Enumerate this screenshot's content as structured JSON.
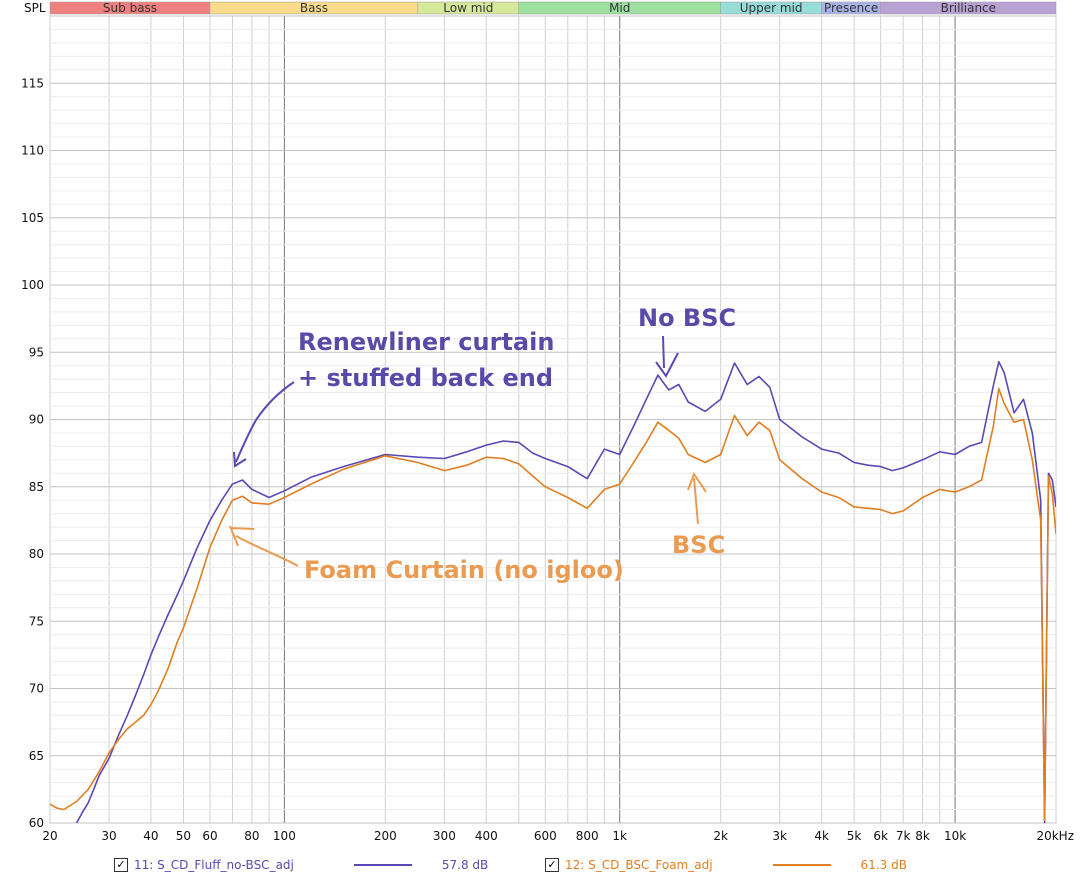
{
  "chart_data": {
    "type": "line",
    "ylabel": "SPL",
    "xscale": "log",
    "xlim": [
      20,
      20000
    ],
    "ylim": [
      60,
      120
    ],
    "grid": true,
    "x_ticks": [
      {
        "v": 20,
        "t": "20"
      },
      {
        "v": 30,
        "t": "30"
      },
      {
        "v": 40,
        "t": "40"
      },
      {
        "v": 50,
        "t": "50"
      },
      {
        "v": 60,
        "t": "60"
      },
      {
        "v": 80,
        "t": "80"
      },
      {
        "v": 100,
        "t": "100"
      },
      {
        "v": 200,
        "t": "200"
      },
      {
        "v": 300,
        "t": "300"
      },
      {
        "v": 400,
        "t": "400"
      },
      {
        "v": 600,
        "t": "600"
      },
      {
        "v": 800,
        "t": "800"
      },
      {
        "v": 1000,
        "t": "1k"
      },
      {
        "v": 2000,
        "t": "2k"
      },
      {
        "v": 3000,
        "t": "3k"
      },
      {
        "v": 4000,
        "t": "4k"
      },
      {
        "v": 5000,
        "t": "5k"
      },
      {
        "v": 6000,
        "t": "6k"
      },
      {
        "v": 7000,
        "t": "7k"
      },
      {
        "v": 8000,
        "t": "8k"
      },
      {
        "v": 10000,
        "t": "10k"
      },
      {
        "v": 20000,
        "t": "20kHz"
      }
    ],
    "y_ticks": [
      60,
      65,
      70,
      75,
      80,
      85,
      90,
      95,
      100,
      105,
      110,
      115
    ],
    "bands": [
      {
        "name": "Sub bass",
        "from": 20,
        "to": 60,
        "color": "#f08080"
      },
      {
        "name": "Bass",
        "from": 60,
        "to": 250,
        "color": "#f8dc8a"
      },
      {
        "name": "Low mid",
        "from": 250,
        "to": 500,
        "color": "#d6e89a"
      },
      {
        "name": "Mid",
        "from": 500,
        "to": 2000,
        "color": "#9de0a0"
      },
      {
        "name": "Upper mid",
        "from": 2000,
        "to": 4000,
        "color": "#96dcd8"
      },
      {
        "name": "Presence",
        "from": 4000,
        "to": 6000,
        "color": "#a8b4e8"
      },
      {
        "name": "Brilliance",
        "from": 6000,
        "to": 20000,
        "color": "#b8a2d4"
      }
    ],
    "series": [
      {
        "name": "11: S_CD_Fluff_no-BSC_adj",
        "color": "#5a48b4",
        "value_label": "57.8 dB",
        "points": [
          [
            24,
            60
          ],
          [
            25,
            60.8
          ],
          [
            26,
            61.5
          ],
          [
            27,
            62.5
          ],
          [
            28,
            63.5
          ],
          [
            30,
            64.8
          ],
          [
            32,
            66.5
          ],
          [
            34,
            68
          ],
          [
            36,
            69.5
          ],
          [
            38,
            71
          ],
          [
            40,
            72.5
          ],
          [
            42,
            73.8
          ],
          [
            45,
            75.5
          ],
          [
            48,
            77
          ],
          [
            50,
            78
          ],
          [
            55,
            80.5
          ],
          [
            60,
            82.5
          ],
          [
            65,
            84
          ],
          [
            70,
            85.2
          ],
          [
            75,
            85.5
          ],
          [
            80,
            84.8
          ],
          [
            90,
            84.2
          ],
          [
            100,
            84.7
          ],
          [
            120,
            85.7
          ],
          [
            150,
            86.5
          ],
          [
            200,
            87.4
          ],
          [
            250,
            87.2
          ],
          [
            300,
            87.1
          ],
          [
            350,
            87.6
          ],
          [
            400,
            88.1
          ],
          [
            450,
            88.4
          ],
          [
            500,
            88.3
          ],
          [
            550,
            87.5
          ],
          [
            600,
            87.1
          ],
          [
            700,
            86.5
          ],
          [
            800,
            85.6
          ],
          [
            900,
            87.8
          ],
          [
            1000,
            87.4
          ],
          [
            1100,
            89.5
          ],
          [
            1200,
            91.5
          ],
          [
            1300,
            93.3
          ],
          [
            1400,
            92.2
          ],
          [
            1500,
            92.6
          ],
          [
            1600,
            91.3
          ],
          [
            1800,
            90.6
          ],
          [
            2000,
            91.5
          ],
          [
            2200,
            94.2
          ],
          [
            2400,
            92.6
          ],
          [
            2600,
            93.2
          ],
          [
            2800,
            92.4
          ],
          [
            3000,
            90
          ],
          [
            3500,
            88.7
          ],
          [
            4000,
            87.8
          ],
          [
            4500,
            87.5
          ],
          [
            5000,
            86.8
          ],
          [
            5500,
            86.6
          ],
          [
            6000,
            86.5
          ],
          [
            6500,
            86.2
          ],
          [
            7000,
            86.4
          ],
          [
            8000,
            87
          ],
          [
            9000,
            87.6
          ],
          [
            10000,
            87.4
          ],
          [
            11000,
            88
          ],
          [
            12000,
            88.3
          ],
          [
            13000,
            92.5
          ],
          [
            13500,
            94.3
          ],
          [
            14000,
            93.5
          ],
          [
            15000,
            90.5
          ],
          [
            16000,
            91.5
          ],
          [
            17000,
            89
          ],
          [
            18000,
            84
          ],
          [
            18500,
            60
          ],
          [
            19000,
            86
          ],
          [
            19500,
            85.5
          ],
          [
            20000,
            83.5
          ]
        ]
      },
      {
        "name": "12: S_CD_BSC_Foam_adj",
        "color": "#e07e22",
        "value_label": "61.3 dB",
        "points": [
          [
            20,
            61.4
          ],
          [
            21,
            61.1
          ],
          [
            22,
            61
          ],
          [
            24,
            61.6
          ],
          [
            26,
            62.5
          ],
          [
            28,
            63.8
          ],
          [
            30,
            65.2
          ],
          [
            32,
            66.2
          ],
          [
            34,
            67
          ],
          [
            36,
            67.5
          ],
          [
            38,
            68
          ],
          [
            40,
            68.8
          ],
          [
            42,
            69.8
          ],
          [
            45,
            71.5
          ],
          [
            48,
            73.5
          ],
          [
            50,
            74.5
          ],
          [
            55,
            77.5
          ],
          [
            60,
            80.5
          ],
          [
            65,
            82.5
          ],
          [
            70,
            84
          ],
          [
            75,
            84.3
          ],
          [
            80,
            83.8
          ],
          [
            90,
            83.7
          ],
          [
            100,
            84.2
          ],
          [
            120,
            85.2
          ],
          [
            150,
            86.3
          ],
          [
            200,
            87.3
          ],
          [
            250,
            86.8
          ],
          [
            300,
            86.2
          ],
          [
            350,
            86.6
          ],
          [
            400,
            87.2
          ],
          [
            450,
            87.1
          ],
          [
            500,
            86.7
          ],
          [
            550,
            85.8
          ],
          [
            600,
            85
          ],
          [
            700,
            84.2
          ],
          [
            800,
            83.4
          ],
          [
            900,
            84.8
          ],
          [
            1000,
            85.2
          ],
          [
            1100,
            86.8
          ],
          [
            1200,
            88.3
          ],
          [
            1300,
            89.8
          ],
          [
            1400,
            89.2
          ],
          [
            1500,
            88.6
          ],
          [
            1600,
            87.4
          ],
          [
            1800,
            86.8
          ],
          [
            2000,
            87.4
          ],
          [
            2200,
            90.3
          ],
          [
            2400,
            88.8
          ],
          [
            2600,
            89.8
          ],
          [
            2800,
            89.2
          ],
          [
            3000,
            87
          ],
          [
            3500,
            85.6
          ],
          [
            4000,
            84.6
          ],
          [
            4500,
            84.2
          ],
          [
            5000,
            83.5
          ],
          [
            5500,
            83.4
          ],
          [
            6000,
            83.3
          ],
          [
            6500,
            83
          ],
          [
            7000,
            83.2
          ],
          [
            8000,
            84.2
          ],
          [
            9000,
            84.8
          ],
          [
            10000,
            84.6
          ],
          [
            11000,
            85
          ],
          [
            12000,
            85.5
          ],
          [
            13000,
            89.5
          ],
          [
            13500,
            92.3
          ],
          [
            14000,
            91.2
          ],
          [
            15000,
            89.8
          ],
          [
            16000,
            90
          ],
          [
            17000,
            87
          ],
          [
            18000,
            82.5
          ],
          [
            18500,
            60.2
          ],
          [
            19000,
            85.8
          ],
          [
            19500,
            84.5
          ],
          [
            20000,
            81.5
          ]
        ]
      }
    ],
    "annotations": [
      {
        "text": "Renewliner curtain",
        "color": "blue"
      },
      {
        "text": "+ stuffed back end",
        "color": "blue"
      },
      {
        "text": "No BSC",
        "color": "blue"
      },
      {
        "text": "Foam Curtain (no igloo)",
        "color": "orange"
      },
      {
        "text": "BSC",
        "color": "orange"
      }
    ]
  },
  "legend": {
    "item1": {
      "label": "11: S_CD_Fluff_no-BSC_adj",
      "value": "57.8 dB",
      "checked": "✓"
    },
    "item2": {
      "label": "12: S_CD_BSC_Foam_adj",
      "value": "61.3 dB",
      "checked": "✓"
    }
  }
}
